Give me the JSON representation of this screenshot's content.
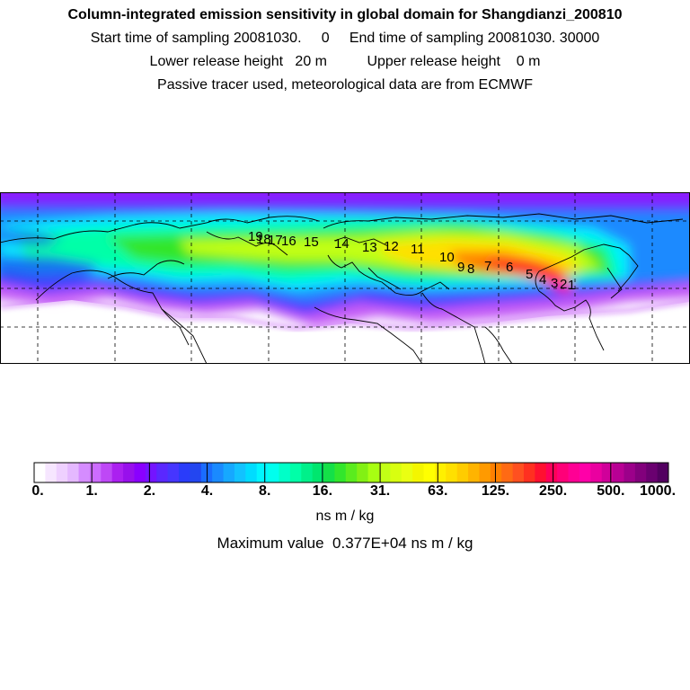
{
  "header": {
    "title": "Column-integrated emission sensitivity in global domain for Shangdianzi_200810",
    "sampling_line": "Start time of sampling 20081030.     0     End time of sampling 20081030. 30000",
    "height_line": "Lower release height   20 m          Upper release height    0 m",
    "tracer_line": "Passive tracer used, meteorological data are from ECMWF"
  },
  "map": {
    "type": "column-integrated emission sensitivity field",
    "trajectory_markers": [
      "1",
      "2",
      "3",
      "4",
      "5",
      "6",
      "7",
      "8",
      "9",
      "10",
      "11",
      "12",
      "13",
      "14",
      "15",
      "16",
      "17",
      "18",
      "19"
    ]
  },
  "colorbar": {
    "tick_labels": [
      "0.",
      "1.",
      "2.",
      "4.",
      "8.",
      "16.",
      "31.",
      "63.",
      "125.",
      "250.",
      "500.",
      "1000."
    ],
    "colors": [
      "#ffffff",
      "#f6e6ff",
      "#eed0ff",
      "#e4b8ff",
      "#d58cff",
      "#cc6cff",
      "#be48f6",
      "#ab20f0",
      "#9810ec",
      "#8a00ff",
      "#7414ff",
      "#5a28ff",
      "#4636ff",
      "#2a3cfa",
      "#2346f0",
      "#1a6cff",
      "#1a8aff",
      "#16a8ff",
      "#12c2ff",
      "#00dcff",
      "#00f6ff",
      "#00ffee",
      "#00ffc8",
      "#00ffa8",
      "#00f08a",
      "#00e66e",
      "#14e048",
      "#32e62c",
      "#5aec1e",
      "#82f014",
      "#a8ff12",
      "#c2ff16",
      "#d8ff10",
      "#eaff12",
      "#f4f600",
      "#ffff00",
      "#fff000",
      "#ffe000",
      "#ffcc00",
      "#ffb400",
      "#ff9a00",
      "#ff8000",
      "#ff6a14",
      "#ff5020",
      "#ff3020",
      "#ff1030",
      "#ff005a",
      "#ff0078",
      "#ff0094",
      "#ff00a8",
      "#ea00a0",
      "#d0009a",
      "#b80094",
      "#9c008a",
      "#82007c",
      "#6a0070",
      "#520060"
    ],
    "units": "ns m / kg"
  },
  "footer": {
    "max_value_line": "Maximum value  0.377E+04 ns m / kg"
  }
}
